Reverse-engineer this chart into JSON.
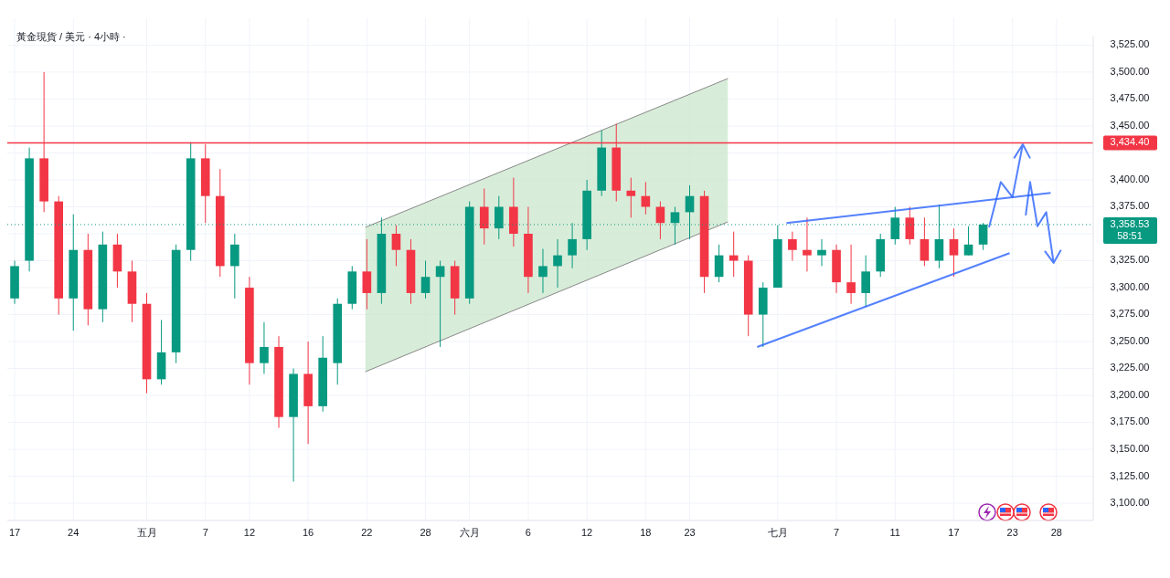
{
  "chart_data": {
    "type": "candlestick",
    "title": "黃金現貨 / 美元 · 4小時 ·",
    "categories": [
      "17",
      null,
      null,
      null,
      "24",
      null,
      null,
      null,
      null,
      "五月",
      null,
      null,
      null,
      "7",
      null,
      null,
      "12",
      null,
      null,
      null,
      "16",
      null,
      null,
      null,
      "22",
      null,
      null,
      null,
      "28",
      null,
      null,
      "六月",
      null,
      null,
      null,
      "6",
      null,
      null,
      null,
      "12",
      null,
      null,
      null,
      "18",
      null,
      null,
      "23",
      null,
      null,
      null,
      null,
      null,
      "七月",
      null,
      null,
      null,
      "7",
      null,
      null,
      null,
      "11",
      null,
      null,
      null,
      "17",
      null,
      null,
      null,
      "23",
      null,
      null,
      "28",
      null,
      null
    ],
    "ohlc": [
      [
        3290,
        3325,
        3285,
        3320
      ],
      [
        3325,
        3430,
        3315,
        3420
      ],
      [
        3420,
        3500,
        3370,
        3380
      ],
      [
        3380,
        3385,
        3275,
        3290
      ],
      [
        3290,
        3368,
        3260,
        3335
      ],
      [
        3335,
        3350,
        3265,
        3280
      ],
      [
        3280,
        3352,
        3268,
        3340
      ],
      [
        3340,
        3350,
        3300,
        3315
      ],
      [
        3315,
        3325,
        3268,
        3285
      ],
      [
        3285,
        3295,
        3202,
        3215
      ],
      [
        3215,
        3270,
        3210,
        3240
      ],
      [
        3240,
        3340,
        3230,
        3335
      ],
      [
        3335,
        3435,
        3325,
        3420
      ],
      [
        3420,
        3433,
        3360,
        3385
      ],
      [
        3385,
        3410,
        3310,
        3320
      ],
      [
        3320,
        3350,
        3290,
        3340
      ],
      [
        3300,
        3310,
        3210,
        3230
      ],
      [
        3230,
        3268,
        3220,
        3245
      ],
      [
        3245,
        3255,
        3170,
        3180
      ],
      [
        3180,
        3225,
        3120,
        3220
      ],
      [
        3220,
        3250,
        3155,
        3190
      ],
      [
        3190,
        3255,
        3185,
        3235
      ],
      [
        3230,
        3290,
        3210,
        3285
      ],
      [
        3285,
        3320,
        3280,
        3315
      ],
      [
        3315,
        3345,
        3280,
        3295
      ],
      [
        3295,
        3365,
        3285,
        3350
      ],
      [
        3350,
        3358,
        3320,
        3335
      ],
      [
        3335,
        3345,
        3285,
        3295
      ],
      [
        3295,
        3325,
        3290,
        3310
      ],
      [
        3310,
        3325,
        3245,
        3320
      ],
      [
        3320,
        3325,
        3275,
        3290
      ],
      [
        3290,
        3380,
        3285,
        3375
      ],
      [
        3375,
        3392,
        3340,
        3355
      ],
      [
        3355,
        3385,
        3345,
        3375
      ],
      [
        3375,
        3402,
        3338,
        3350
      ],
      [
        3350,
        3375,
        3295,
        3310
      ],
      [
        3310,
        3336,
        3295,
        3320
      ],
      [
        3320,
        3345,
        3300,
        3330
      ],
      [
        3330,
        3360,
        3318,
        3345
      ],
      [
        3345,
        3400,
        3335,
        3390
      ],
      [
        3390,
        3446,
        3385,
        3430
      ],
      [
        3430,
        3452,
        3380,
        3390
      ],
      [
        3390,
        3402,
        3365,
        3385
      ],
      [
        3385,
        3398,
        3368,
        3375
      ],
      [
        3375,
        3380,
        3345,
        3360
      ],
      [
        3360,
        3375,
        3340,
        3370
      ],
      [
        3370,
        3395,
        3345,
        3385
      ],
      [
        3385,
        3390,
        3295,
        3310
      ],
      [
        3310,
        3340,
        3305,
        3330
      ],
      [
        3330,
        3352,
        3310,
        3325
      ],
      [
        3325,
        3330,
        3255,
        3275
      ],
      [
        3275,
        3305,
        3245,
        3300
      ],
      [
        3300,
        3358,
        3300,
        3345
      ],
      [
        3345,
        3352,
        3325,
        3335
      ],
      [
        3335,
        3365,
        3315,
        3330
      ],
      [
        3330,
        3345,
        3320,
        3335
      ],
      [
        3335,
        3340,
        3295,
        3305
      ],
      [
        3305,
        3340,
        3285,
        3295
      ],
      [
        3295,
        3330,
        3282,
        3315
      ],
      [
        3315,
        3350,
        3310,
        3345
      ],
      [
        3345,
        3375,
        3340,
        3365
      ],
      [
        3365,
        3375,
        3340,
        3345
      ],
      [
        3345,
        3365,
        3320,
        3325
      ],
      [
        3325,
        3377,
        3318,
        3345
      ],
      [
        3345,
        3355,
        3310,
        3330
      ],
      [
        3330,
        3357,
        3330,
        3340
      ],
      [
        3340,
        3360,
        3335,
        3358.53
      ],
      null,
      null,
      null,
      null,
      null,
      null,
      null
    ],
    "ylim": [
      3084,
      3533
    ],
    "yticks": [
      {
        "value": 3100,
        "label": "3,100.00"
      },
      {
        "value": 3125,
        "label": "3,125.00"
      },
      {
        "value": 3150,
        "label": "3,150.00"
      },
      {
        "value": 3175,
        "label": "3,175.00"
      },
      {
        "value": 3200,
        "label": "3,200.00"
      },
      {
        "value": 3225,
        "label": "3,225.00"
      },
      {
        "value": 3250,
        "label": "3,250.00"
      },
      {
        "value": 3275,
        "label": "3,275.00"
      },
      {
        "value": 3300,
        "label": "3,300.00"
      },
      {
        "value": 3325,
        "label": "3,325.00"
      },
      {
        "value": 3350,
        "label": null
      },
      {
        "value": 3375,
        "label": "3,375.00"
      },
      {
        "value": 3400,
        "label": "3,400.00"
      },
      {
        "value": 3425,
        "label": null
      },
      {
        "value": 3450,
        "label": "3,450.00"
      },
      {
        "value": 3475,
        "label": "3,475.00"
      },
      {
        "value": 3500,
        "label": "3,500.00"
      },
      {
        "value": 3525,
        "label": "3,525.00"
      }
    ],
    "grid": true,
    "ref_lines": [
      {
        "axis": "y",
        "value": 3434.4,
        "label": "3,434.40",
        "color": "#f23645",
        "line_style": "solid"
      },
      {
        "axis": "y",
        "value": 3358.53,
        "label": "3,358.53",
        "color": "#089981",
        "line_style": "dotted"
      }
    ],
    "annotations": [
      "58:51"
    ]
  }
}
